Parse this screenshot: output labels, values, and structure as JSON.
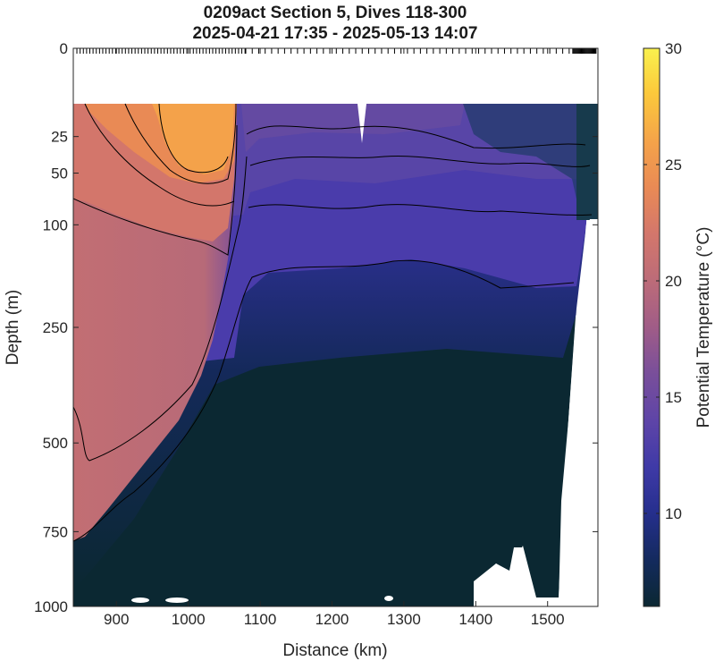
{
  "chart_data": {
    "type": "heatmap",
    "title": "0209act Section 5, Dives 118-300",
    "subtitle": "2025-04-21 17:35 - 2025-05-13 14:07",
    "xlabel": "Distance (km)",
    "ylabel": "Depth (m)",
    "xlim": [
      840,
      1570
    ],
    "ylim": [
      0,
      1000
    ],
    "y_scale": "sqrt",
    "x_ticks": [
      900,
      1000,
      1100,
      1200,
      1300,
      1400,
      1500
    ],
    "y_ticks": [
      0,
      25,
      50,
      100,
      250,
      500,
      750,
      1000
    ],
    "colorbar": {
      "label": "Potential Temperature (°C)",
      "range": [
        6,
        30
      ],
      "ticks": [
        10,
        15,
        20,
        25,
        30
      ]
    },
    "colors": {
      "c6": "#0b2832",
      "c8": "#132a5c",
      "c10": "#262f8e",
      "c12": "#3f3aa7",
      "c14": "#5d44a8",
      "c16": "#7a4f9a",
      "c18": "#a05c87",
      "c20": "#bb6b79",
      "c22": "#d4776b",
      "c24": "#e98a55",
      "c26": "#f4a24a",
      "c28": "#fcc93b",
      "c30": "#f9f14e"
    },
    "contour_levels": [
      10,
      14,
      16,
      18,
      20,
      22
    ],
    "description": "Potential temperature section along glider track"
  }
}
